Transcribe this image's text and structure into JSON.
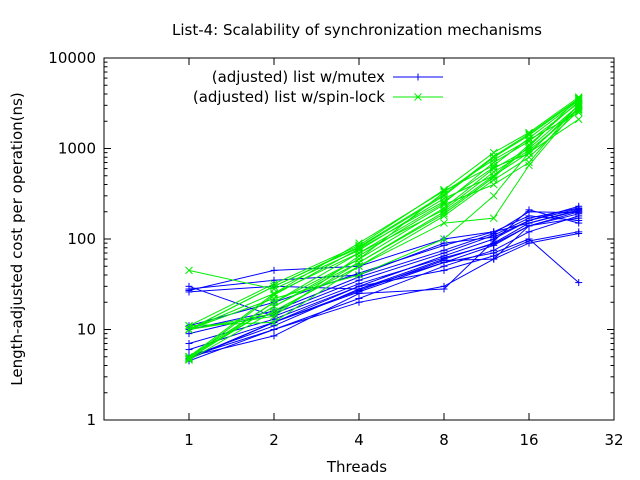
{
  "chart_data": {
    "type": "line",
    "title": "List-4: Scalability of synchronization mechanisms",
    "xlabel": "Threads",
    "ylabel": "Length-adjusted cost per operation(ns)",
    "x_scale": "log2",
    "y_scale": "log10",
    "xlim": [
      0.5,
      32
    ],
    "ylim": [
      1,
      10000
    ],
    "x_ticks": [
      1,
      2,
      4,
      8,
      16,
      32
    ],
    "x_tick_labels": [
      "1",
      "2",
      "4",
      "8",
      "16",
      "32"
    ],
    "y_ticks": [
      1,
      10,
      100,
      1000,
      10000
    ],
    "y_tick_labels": [
      "1",
      "10",
      "100",
      "1000",
      "10000"
    ],
    "x_points": [
      1,
      2,
      4,
      8,
      12,
      16,
      24
    ],
    "legend_position": "top-center",
    "grid": false,
    "series": [
      {
        "name": "(adjusted) list w/mutex",
        "color": "#0000ff",
        "marker": "plus",
        "runs": [
          [
            4.8,
            12,
            26,
            55,
            85,
            140,
            200
          ],
          [
            4.5,
            10,
            22,
            50,
            75,
            120,
            180
          ],
          [
            5,
            11,
            28,
            60,
            90,
            150,
            210
          ],
          [
            7,
            13,
            30,
            65,
            100,
            160,
            230
          ],
          [
            9,
            15,
            35,
            70,
            110,
            170,
            220
          ],
          [
            10,
            16,
            38,
            75,
            115,
            200,
            195
          ],
          [
            11,
            20,
            42,
            85,
            120,
            150,
            205
          ],
          [
            30,
            14,
            32,
            62,
            88,
            140,
            190
          ],
          [
            28,
            35,
            40,
            90,
            105,
            160,
            215
          ],
          [
            26,
            30,
            28,
            55,
            70,
            100,
            33
          ],
          [
            27,
            45,
            50,
            100,
            120,
            180,
            160
          ],
          [
            5,
            8.5,
            25,
            28,
            95,
            210,
            150
          ],
          [
            4.7,
            12,
            27,
            58,
            60,
            90,
            115
          ],
          [
            6,
            12,
            30,
            45,
            65,
            95,
            120
          ],
          [
            5,
            10,
            20,
            30,
            60,
            140,
            170
          ]
        ]
      },
      {
        "name": "(adjusted) list w/spin-lock",
        "color": "#00ee00",
        "marker": "cross",
        "runs": [
          [
            4.8,
            18,
            55,
            200,
            500,
            900,
            2800
          ],
          [
            4.6,
            16,
            50,
            180,
            450,
            800,
            2600
          ],
          [
            5,
            20,
            60,
            220,
            600,
            1000,
            3000
          ],
          [
            10,
            25,
            70,
            250,
            700,
            1200,
            3200
          ],
          [
            10,
            30,
            80,
            300,
            800,
            1400,
            3500
          ],
          [
            11,
            32,
            85,
            350,
            900,
            1500,
            3700
          ],
          [
            45,
            28,
            75,
            280,
            500,
            1100,
            3300
          ],
          [
            10,
            14,
            65,
            240,
            400,
            700,
            3100
          ],
          [
            11,
            12,
            50,
            150,
            170,
            650,
            2900
          ],
          [
            10,
            22,
            40,
            100,
            300,
            900,
            2100
          ],
          [
            5,
            25,
            90,
            340,
            650,
            1300,
            3400
          ],
          [
            4.7,
            20,
            70,
            210,
            550,
            950,
            2700
          ],
          [
            10,
            15,
            55,
            190,
            480,
            1050,
            3600
          ],
          [
            5,
            18,
            60,
            330,
            750,
            1250,
            2500
          ],
          [
            4.8,
            24,
            78,
            260,
            620,
            880,
            3000
          ],
          [
            10,
            30,
            82,
            310,
            820,
            1450,
            3550
          ]
        ]
      }
    ]
  }
}
